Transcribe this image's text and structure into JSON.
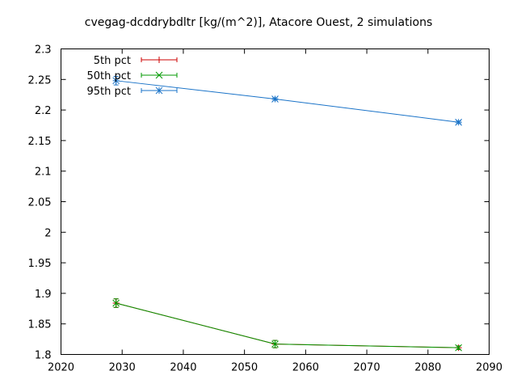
{
  "chart_data": {
    "type": "line",
    "title": "cvegag-dcddrybdltr [kg/(m^2)], Atacore Ouest, 2 simulations",
    "xlabel": "",
    "ylabel": "",
    "xlim": [
      2020,
      2090
    ],
    "ylim": [
      1.8,
      2.3
    ],
    "x_ticks": [
      "2020",
      "2030",
      "2040",
      "2050",
      "2060",
      "2070",
      "2080",
      "2090"
    ],
    "y_ticks": [
      "1.8",
      "1.85",
      "1.9",
      "1.95",
      "2",
      "2.05",
      "2.1",
      "2.15",
      "2.2",
      "2.25",
      "2.3"
    ],
    "grid": false,
    "legend_position": "top-left",
    "series": [
      {
        "name": "5th pct",
        "color": "#cc0000",
        "marker": "plus",
        "x": [
          2029,
          2055,
          2085
        ],
        "y": [
          1.884,
          1.817,
          1.811
        ],
        "err": [
          0.007,
          0.006,
          0.003
        ]
      },
      {
        "name": "50th pct",
        "color": "#009900",
        "marker": "cross",
        "x": [
          2029,
          2055,
          2085
        ],
        "y": [
          1.884,
          1.817,
          1.811
        ],
        "err": [
          0.007,
          0.006,
          0.003
        ]
      },
      {
        "name": "95th pct",
        "color": "#1a73c8",
        "marker": "star",
        "x": [
          2029,
          2055,
          2085
        ],
        "y": [
          2.248,
          2.218,
          2.18
        ],
        "err": [
          0.007,
          0.002,
          0.002
        ]
      }
    ]
  }
}
